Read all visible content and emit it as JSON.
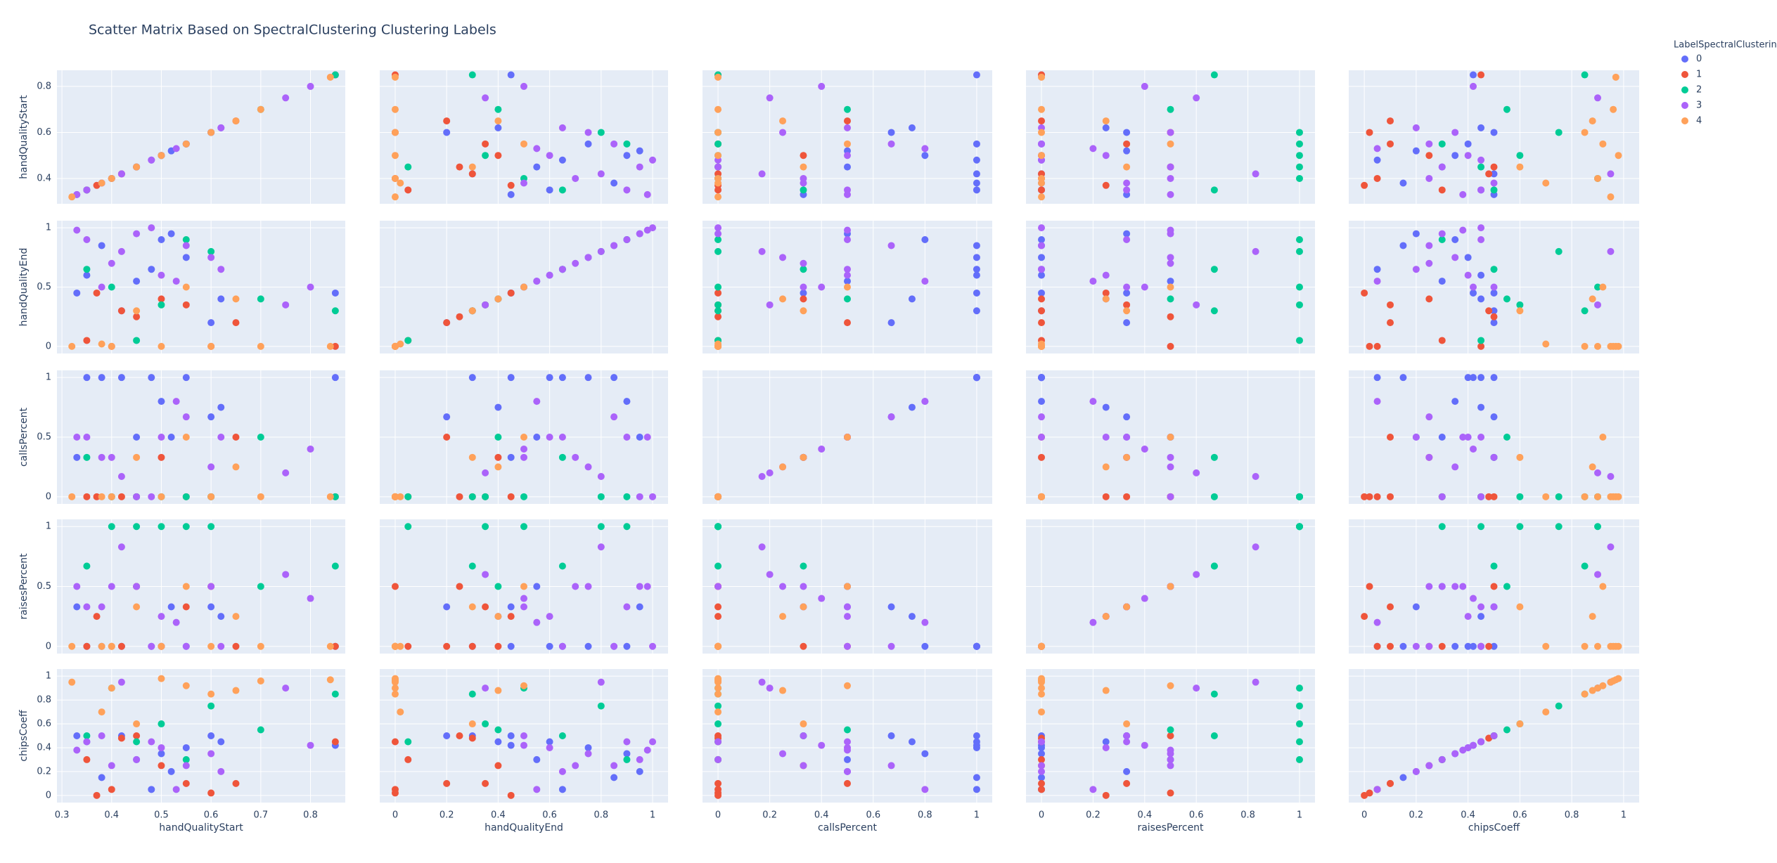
{
  "chart_data": {
    "type": "scatter_matrix",
    "title": "Scatter Matrix Based on SpectralClustering Clustering Labels",
    "legend_title": "LabelSpectralClustering",
    "legend_position": "top-right",
    "grid": true,
    "dimensions": [
      {
        "label": "handQualityStart",
        "lim": [
          0.29,
          0.87
        ],
        "xticks": [
          0.3,
          0.4,
          0.5,
          0.6,
          0.7,
          0.8
        ],
        "yticks": [
          0.4,
          0.6,
          0.8
        ]
      },
      {
        "label": "handQualityEnd",
        "lim": [
          -0.06,
          1.06
        ],
        "xticks": [
          0,
          0.2,
          0.4,
          0.6,
          0.8,
          1
        ],
        "yticks": [
          0,
          0.5,
          1
        ]
      },
      {
        "label": "callsPercent",
        "lim": [
          -0.06,
          1.06
        ],
        "xticks": [
          0,
          0.2,
          0.4,
          0.6,
          0.8,
          1
        ],
        "yticks": [
          0,
          0.5,
          1
        ]
      },
      {
        "label": "raisesPercent",
        "lim": [
          -0.06,
          1.06
        ],
        "xticks": [
          0,
          0.2,
          0.4,
          0.6,
          0.8,
          1
        ],
        "yticks": [
          0,
          0.5,
          1
        ]
      },
      {
        "label": "chipsCoeff",
        "lim": [
          -0.06,
          1.06
        ],
        "xticks": [
          0,
          0.2,
          0.4,
          0.6,
          0.8,
          1
        ],
        "yticks": [
          0,
          0.2,
          0.4,
          0.6,
          0.8,
          1
        ]
      }
    ],
    "series": [
      {
        "name": "0",
        "color": "#636efa",
        "values": [
          [
            0.35,
            0.6,
            1,
            0,
            0.45
          ],
          [
            0.42,
            0.3,
            1,
            0,
            0.5
          ],
          [
            0.5,
            0.9,
            0.8,
            0,
            0.35
          ],
          [
            0.55,
            0.75,
            1,
            0,
            0.4
          ],
          [
            0.6,
            0.2,
            0.67,
            0.33,
            0.5
          ],
          [
            0.45,
            0.55,
            0.5,
            0.5,
            0.3
          ],
          [
            0.38,
            0.85,
            1,
            0,
            0.15
          ],
          [
            0.62,
            0.4,
            0.75,
            0.25,
            0.45
          ],
          [
            0.48,
            0.65,
            1,
            0,
            0.05
          ],
          [
            0.33,
            0.45,
            0.33,
            0.33,
            0.5
          ],
          [
            0.52,
            0.95,
            0.5,
            0.33,
            0.2
          ],
          [
            0.85,
            0.45,
            1,
            0,
            0.42
          ]
        ]
      },
      {
        "name": "1",
        "color": "#EF553B",
        "values": [
          [
            0.4,
            0,
            0,
            0,
            0.05
          ],
          [
            0.45,
            0.25,
            0,
            0.5,
            0.5
          ],
          [
            0.55,
            0.35,
            0,
            0.33,
            0.1
          ],
          [
            0.35,
            0.05,
            0,
            0,
            0.3
          ],
          [
            0.5,
            0.4,
            0.33,
            0,
            0.25
          ],
          [
            0.6,
            0,
            0,
            0.5,
            0.02
          ],
          [
            0.42,
            0.3,
            0,
            0,
            0.48
          ],
          [
            0.65,
            0.2,
            0.5,
            0,
            0.1
          ],
          [
            0.37,
            0.45,
            0,
            0.25,
            0
          ],
          [
            0.85,
            0,
            0,
            0,
            0.45
          ]
        ]
      },
      {
        "name": "2",
        "color": "#00cc96",
        "values": [
          [
            0.4,
            0.5,
            0,
            1,
            0.9
          ],
          [
            0.5,
            0.35,
            0,
            1,
            0.6
          ],
          [
            0.6,
            0.8,
            0,
            1,
            0.75
          ],
          [
            0.45,
            0.05,
            0,
            1,
            0.45
          ],
          [
            0.35,
            0.65,
            0.33,
            0.67,
            0.5
          ],
          [
            0.55,
            0.9,
            0,
            1,
            0.3
          ],
          [
            0.7,
            0.4,
            0.5,
            0.5,
            0.55
          ],
          [
            0.85,
            0.3,
            0,
            0.67,
            0.85
          ]
        ]
      },
      {
        "name": "3",
        "color": "#ab63fa",
        "values": [
          [
            0.35,
            0.9,
            0.5,
            0.33,
            0.45
          ],
          [
            0.4,
            0.7,
            0.33,
            0.5,
            0.25
          ],
          [
            0.45,
            0.95,
            0,
            0.5,
            0.3
          ],
          [
            0.5,
            0.6,
            0.5,
            0.25,
            0.4
          ],
          [
            0.55,
            0.85,
            0.67,
            0,
            0.25
          ],
          [
            0.6,
            0.75,
            0.25,
            0.5,
            0.35
          ],
          [
            0.38,
            0.5,
            0.33,
            0.33,
            0.5
          ],
          [
            0.48,
            1,
            0,
            0,
            0.45
          ],
          [
            0.62,
            0.65,
            0.5,
            0,
            0.2
          ],
          [
            0.8,
            0.5,
            0.4,
            0.4,
            0.42
          ],
          [
            0.75,
            0.35,
            0.2,
            0.6,
            0.9
          ],
          [
            0.42,
            0.8,
            0.17,
            0.83,
            0.95
          ],
          [
            0.53,
            0.55,
            0.8,
            0.2,
            0.05
          ],
          [
            0.33,
            0.98,
            0.5,
            0.5,
            0.38
          ]
        ]
      },
      {
        "name": "4",
        "color": "#FFA15A",
        "values": [
          [
            0.32,
            0,
            0,
            0,
            0.95
          ],
          [
            0.4,
            0,
            0,
            0,
            0.9
          ],
          [
            0.5,
            0,
            0,
            0,
            0.98
          ],
          [
            0.6,
            0,
            0,
            0,
            0.85
          ],
          [
            0.45,
            0.3,
            0.33,
            0.33,
            0.6
          ],
          [
            0.55,
            0.5,
            0.5,
            0.5,
            0.92
          ],
          [
            0.7,
            0,
            0,
            0,
            0.96
          ],
          [
            0.84,
            0,
            0,
            0,
            0.97
          ],
          [
            0.38,
            0.02,
            0,
            0,
            0.7
          ],
          [
            0.65,
            0.4,
            0.25,
            0.25,
            0.88
          ]
        ]
      }
    ]
  }
}
